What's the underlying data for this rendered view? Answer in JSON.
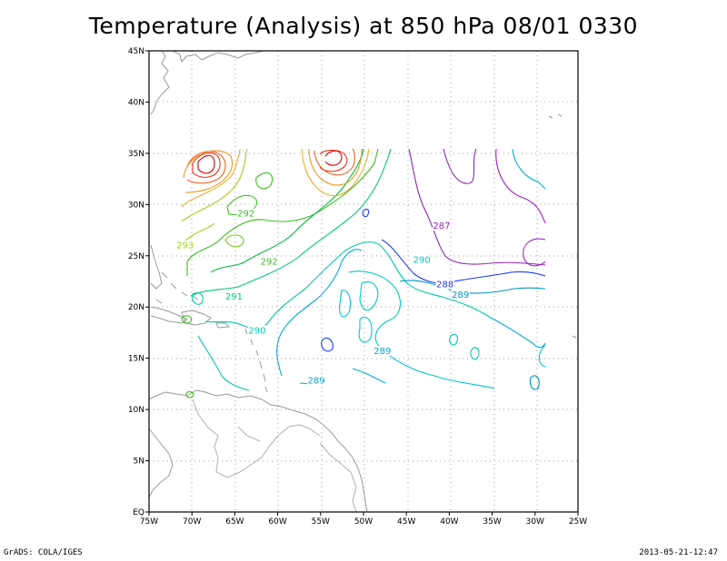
{
  "title": "Temperature (Analysis) at 850 hPa 08/01 0330",
  "footer": {
    "left": "GrADS: COLA/IGES",
    "right": "2013-05-21-12:47"
  },
  "axes": {
    "x_ticks": [
      "75W",
      "70W",
      "65W",
      "60W",
      "55W",
      "50W",
      "45W",
      "40W",
      "35W",
      "30W",
      "25W"
    ],
    "y_ticks": [
      "EQ",
      "5N",
      "10N",
      "15N",
      "20N",
      "25N",
      "30N",
      "35N",
      "40N",
      "45N"
    ],
    "lon_range": [
      -75,
      -25
    ],
    "lat_range": [
      0,
      45
    ],
    "grid": true
  },
  "contour_labels": [
    {
      "text": "292",
      "lon": -63.7,
      "lat": 29.0,
      "color": "#3cbe1e"
    },
    {
      "text": "293",
      "lon": -70.8,
      "lat": 25.9,
      "color": "#a0d21e"
    },
    {
      "text": "292",
      "lon": -61.0,
      "lat": 24.3,
      "color": "#3cbe1e"
    },
    {
      "text": "291",
      "lon": -65.1,
      "lat": 20.9,
      "color": "#00c878"
    },
    {
      "text": "290",
      "lon": -62.4,
      "lat": 17.6,
      "color": "#00c8aa"
    },
    {
      "text": "290",
      "lon": -43.2,
      "lat": 24.5,
      "color": "#00c8c8"
    },
    {
      "text": "289",
      "lon": -47.8,
      "lat": 15.6,
      "color": "#00aadc"
    },
    {
      "text": "289",
      "lon": -55.5,
      "lat": 12.7,
      "color": "#00aadc"
    },
    {
      "text": "289",
      "lon": -38.7,
      "lat": 21.1,
      "color": "#0096c8"
    },
    {
      "text": "288",
      "lon": -40.5,
      "lat": 22.1,
      "color": "#1e3cff"
    },
    {
      "text": "287",
      "lon": -40.9,
      "lat": 27.8,
      "color": "#8c28b4"
    }
  ]
}
